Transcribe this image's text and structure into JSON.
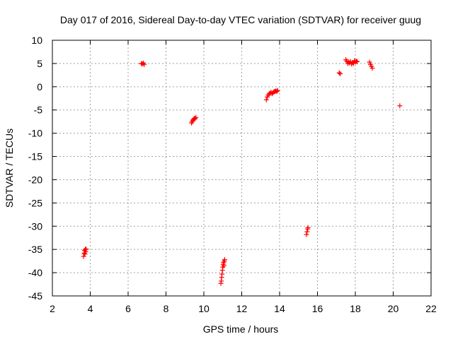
{
  "chart_data": {
    "type": "scatter",
    "title": "Day 017 of 2016, Sidereal Day-to-day VTEC variation (SDTVAR) for receiver guug",
    "xlabel": "GPS time / hours",
    "ylabel": "SDTVAR / TECUs",
    "xlim": [
      2,
      22
    ],
    "ylim": [
      -45,
      10
    ],
    "x_ticks": [
      "2",
      "4",
      "6",
      "8",
      "10",
      "12",
      "14",
      "16",
      "18",
      "20",
      "22"
    ],
    "y_ticks": [
      "10",
      "5",
      "0",
      "-5",
      "-10",
      "-15",
      "-20",
      "-25",
      "-30",
      "-35",
      "-40",
      "-45"
    ],
    "x_tick_values": [
      2,
      4,
      6,
      8,
      10,
      12,
      14,
      16,
      18,
      20,
      22
    ],
    "y_tick_values": [
      10,
      5,
      0,
      -5,
      -10,
      -15,
      -20,
      -25,
      -30,
      -35,
      -40,
      -45
    ],
    "grid": true,
    "marker_color": "#ff0000",
    "series": [
      {
        "name": "SDTVAR",
        "x": [
          3.65,
          3.68,
          3.7,
          3.72,
          3.74,
          3.76,
          3.78,
          6.7,
          6.75,
          6.8,
          6.85,
          9.35,
          9.38,
          9.42,
          9.46,
          9.5,
          9.54,
          9.58,
          10.9,
          10.92,
          10.94,
          10.96,
          10.98,
          11.0,
          11.02,
          11.04,
          11.06,
          11.08,
          11.1,
          13.3,
          13.35,
          13.4,
          13.45,
          13.5,
          13.55,
          13.6,
          13.65,
          13.7,
          13.75,
          13.8,
          13.85,
          13.9,
          15.42,
          15.45,
          15.48,
          15.5,
          17.15,
          17.2,
          17.5,
          17.55,
          17.6,
          17.65,
          17.7,
          17.75,
          17.8,
          17.85,
          17.9,
          17.95,
          18.0,
          18.05,
          18.1,
          18.75,
          18.8,
          18.85,
          18.9,
          20.35
        ],
        "y": [
          -36.5,
          -35.8,
          -35.2,
          -36.0,
          -35.0,
          -35.5,
          -34.9,
          5.0,
          4.9,
          5.1,
          4.8,
          -7.8,
          -7.5,
          -7.2,
          -7.0,
          -6.8,
          -6.9,
          -6.6,
          -42.3,
          -41.8,
          -41.0,
          -40.3,
          -39.5,
          -38.8,
          -38.2,
          -37.8,
          -38.5,
          -37.5,
          -37.2,
          -2.8,
          -2.2,
          -1.8,
          -1.5,
          -1.4,
          -1.2,
          -1.5,
          -1.3,
          -1.1,
          -1.0,
          -0.9,
          -1.0,
          -0.8,
          -31.8,
          -31.2,
          -30.6,
          -30.3,
          3.0,
          2.8,
          5.8,
          5.5,
          5.0,
          5.3,
          5.1,
          5.4,
          4.9,
          5.2,
          5.0,
          5.6,
          5.3,
          5.5,
          5.4,
          5.3,
          4.8,
          4.4,
          4.0,
          -4.1
        ]
      }
    ]
  }
}
